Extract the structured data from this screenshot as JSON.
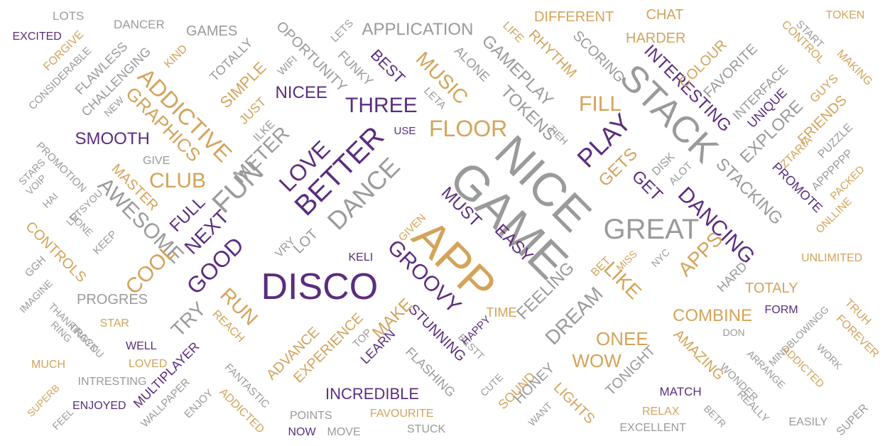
{
  "palette": {
    "gray": "#9a9a9a",
    "gold": "#d4a35a",
    "purple": "#5b2d7e"
  },
  "words": [
    {
      "text": "LOTS",
      "c": "gray"
    },
    {
      "text": "DANCER",
      "c": "gray"
    },
    {
      "text": "EXCITED",
      "c": "purple"
    },
    {
      "text": "FORGIVE",
      "c": "gold"
    },
    {
      "text": "CONSIDERABLE",
      "c": "gray"
    },
    {
      "text": "FLAWLESS",
      "c": "gray"
    },
    {
      "text": "CHALLENGING",
      "c": "gray"
    },
    {
      "text": "NEW",
      "c": "gray"
    },
    {
      "text": "GAMES",
      "c": "gray"
    },
    {
      "text": "KIND",
      "c": "gold"
    },
    {
      "text": "TOTALLY",
      "c": "gray"
    },
    {
      "text": "ADDICTIVE",
      "c": "gold"
    },
    {
      "text": "GRAPHICS",
      "c": "gold"
    },
    {
      "text": "SIMPLE",
      "c": "gold"
    },
    {
      "text": "WIFI",
      "c": "gray"
    },
    {
      "text": "JUST",
      "c": "gold"
    },
    {
      "text": "ILKE",
      "c": "gray"
    },
    {
      "text": "OPORTUNITY",
      "c": "gray"
    },
    {
      "text": "LETS",
      "c": "gray"
    },
    {
      "text": "FUNKY",
      "c": "gray"
    },
    {
      "text": "APPLICATION",
      "c": "gray"
    },
    {
      "text": "BEST",
      "c": "purple"
    },
    {
      "text": "NICEE",
      "c": "purple"
    },
    {
      "text": "THREE",
      "c": "purple"
    },
    {
      "text": "LETA",
      "c": "gray"
    },
    {
      "text": "USE",
      "c": "purple"
    },
    {
      "text": "MUSIC",
      "c": "gold"
    },
    {
      "text": "ALONE",
      "c": "gray"
    },
    {
      "text": "FLOOR",
      "c": "gold"
    },
    {
      "text": "GAMEPLAY",
      "c": "gray"
    },
    {
      "text": "LIFE",
      "c": "gold"
    },
    {
      "text": "RHYTHM",
      "c": "gold"
    },
    {
      "text": "DIFFERENT",
      "c": "gold"
    },
    {
      "text": "TOKENS",
      "c": "gray"
    },
    {
      "text": "SCORING",
      "c": "gray"
    },
    {
      "text": "CHAT",
      "c": "gold"
    },
    {
      "text": "HARDER",
      "c": "gold"
    },
    {
      "text": "TIEH",
      "c": "gray"
    },
    {
      "text": "FILL",
      "c": "gold"
    },
    {
      "text": "STACK",
      "c": "gray"
    },
    {
      "text": "INTERESTING",
      "c": "purple"
    },
    {
      "text": "COLOUR",
      "c": "gold"
    },
    {
      "text": "FAVORITE",
      "c": "gray"
    },
    {
      "text": "START",
      "c": "gray"
    },
    {
      "text": "TOKEN",
      "c": "gold"
    },
    {
      "text": "CONTROL",
      "c": "gold"
    },
    {
      "text": "MAKING",
      "c": "gold"
    },
    {
      "text": "INTERFACE",
      "c": "gray"
    },
    {
      "text": "UNIQUE",
      "c": "purple"
    },
    {
      "text": "GUYS",
      "c": "gold"
    },
    {
      "text": "FRIENDS",
      "c": "gold"
    },
    {
      "text": "EXPLORE",
      "c": "gray"
    },
    {
      "text": "PUZZLE",
      "c": "gray"
    },
    {
      "text": "ZTARIA",
      "c": "gold"
    },
    {
      "text": "APPPPPP",
      "c": "gray"
    },
    {
      "text": "PACKED",
      "c": "gold"
    },
    {
      "text": "PROMOTE",
      "c": "purple"
    },
    {
      "text": "ONLLINE",
      "c": "gold"
    },
    {
      "text": "STACKING",
      "c": "gray"
    },
    {
      "text": "DANCING",
      "c": "purple"
    },
    {
      "text": "PLAY",
      "c": "purple"
    },
    {
      "text": "GETS",
      "c": "gold"
    },
    {
      "text": "DISK",
      "c": "gray"
    },
    {
      "text": "ALOT",
      "c": "gray"
    },
    {
      "text": "GET",
      "c": "purple"
    },
    {
      "text": "NICE",
      "c": "gray"
    },
    {
      "text": "GAME",
      "c": "gray"
    },
    {
      "text": "GREAT",
      "c": "gray"
    },
    {
      "text": "SMOOTH",
      "c": "purple"
    },
    {
      "text": "PROMOTION",
      "c": "gray"
    },
    {
      "text": "STARS",
      "c": "gray"
    },
    {
      "text": "VOIP",
      "c": "gray"
    },
    {
      "text": "GIVE",
      "c": "gray"
    },
    {
      "text": "CLUB",
      "c": "gold"
    },
    {
      "text": "MASTER",
      "c": "gold"
    },
    {
      "text": "AWESOME",
      "c": "gray"
    },
    {
      "text": "HAI",
      "c": "gray"
    },
    {
      "text": "LETSYOU",
      "c": "gray"
    },
    {
      "text": "DONE",
      "c": "gray"
    },
    {
      "text": "CONTROLS",
      "c": "gold"
    },
    {
      "text": "GGH",
      "c": "gray"
    },
    {
      "text": "KEEP",
      "c": "gray"
    },
    {
      "text": "METER",
      "c": "gray"
    },
    {
      "text": "LOVE",
      "c": "purple"
    },
    {
      "text": "FUN",
      "c": "gray"
    },
    {
      "text": "FULL",
      "c": "purple"
    },
    {
      "text": "NEXT",
      "c": "purple"
    },
    {
      "text": "BETTER",
      "c": "purple"
    },
    {
      "text": "DANCE",
      "c": "gray"
    },
    {
      "text": "GOOD",
      "c": "purple"
    },
    {
      "text": "COOL",
      "c": "gold"
    },
    {
      "text": "IMAGINE",
      "c": "gray"
    },
    {
      "text": "PROGRES",
      "c": "gray"
    },
    {
      "text": "VRY",
      "c": "gray"
    },
    {
      "text": "LOT",
      "c": "gray"
    },
    {
      "text": "DISCO",
      "c": "purple"
    },
    {
      "text": "KELI",
      "c": "purple"
    },
    {
      "text": "GROOVY",
      "c": "purple"
    },
    {
      "text": "GIVEN",
      "c": "gold"
    },
    {
      "text": "APP",
      "c": "gold"
    },
    {
      "text": "MUST",
      "c": "purple"
    },
    {
      "text": "EASY",
      "c": "purple"
    },
    {
      "text": "FEELING",
      "c": "gray"
    },
    {
      "text": "DREAM",
      "c": "gray"
    },
    {
      "text": "LIKE",
      "c": "gold"
    },
    {
      "text": "BET",
      "c": "gold"
    },
    {
      "text": "MISS",
      "c": "gold"
    },
    {
      "text": "NYC",
      "c": "gray"
    },
    {
      "text": "APPS",
      "c": "gold"
    },
    {
      "text": "HARD",
      "c": "gray"
    },
    {
      "text": "UNLIMITED",
      "c": "gold"
    },
    {
      "text": "TOTALY",
      "c": "gold"
    },
    {
      "text": "COMBINE",
      "c": "gold"
    },
    {
      "text": "FORM",
      "c": "purple"
    },
    {
      "text": "TRUH",
      "c": "gold"
    },
    {
      "text": "FOREVER",
      "c": "gold"
    },
    {
      "text": "MINDBLOWINGG",
      "c": "gray"
    },
    {
      "text": "DON",
      "c": "gray"
    },
    {
      "text": "ARRANGE",
      "c": "gray"
    },
    {
      "text": "WORK",
      "c": "gray"
    },
    {
      "text": "ADDICTED",
      "c": "gold"
    },
    {
      "text": "WONDER",
      "c": "gray"
    },
    {
      "text": "AMAZING",
      "c": "gold"
    },
    {
      "text": "ONEE",
      "c": "gold"
    },
    {
      "text": "WOW",
      "c": "gold"
    },
    {
      "text": "TIME",
      "c": "gold"
    },
    {
      "text": "THANKINGYOU",
      "c": "gray"
    },
    {
      "text": "RING",
      "c": "gray"
    },
    {
      "text": "TRY",
      "c": "gray"
    },
    {
      "text": "RUN",
      "c": "gold"
    },
    {
      "text": "REACH",
      "c": "gold"
    },
    {
      "text": "STAR",
      "c": "gold"
    },
    {
      "text": "TRACK",
      "c": "gray"
    },
    {
      "text": "WELL",
      "c": "purple"
    },
    {
      "text": "MUCH",
      "c": "gold"
    },
    {
      "text": "LOVED",
      "c": "gold"
    },
    {
      "text": "INTRESTING",
      "c": "gray"
    },
    {
      "text": "SUPERB",
      "c": "gold"
    },
    {
      "text": "ENJOYED",
      "c": "purple"
    },
    {
      "text": "FEEL",
      "c": "gray"
    },
    {
      "text": "MULTIPLAYER",
      "c": "purple"
    },
    {
      "text": "WALLPAPER",
      "c": "gray"
    },
    {
      "text": "ENJOY",
      "c": "gray"
    },
    {
      "text": "FANTASTIC",
      "c": "gray"
    },
    {
      "text": "ADDICTED",
      "c": "gold"
    },
    {
      "text": "ADVANCE",
      "c": "gold"
    },
    {
      "text": "EXPERIENCE",
      "c": "gold"
    },
    {
      "text": "TOP",
      "c": "gray"
    },
    {
      "text": "MAKE",
      "c": "gold"
    },
    {
      "text": "LEARN",
      "c": "purple"
    },
    {
      "text": "STUNNING",
      "c": "purple"
    },
    {
      "text": "BESTT",
      "c": "gray"
    },
    {
      "text": "HAPPY",
      "c": "purple"
    },
    {
      "text": "FLASHING",
      "c": "gray"
    },
    {
      "text": "INCREDIBLE",
      "c": "purple"
    },
    {
      "text": "POINTS",
      "c": "gray"
    },
    {
      "text": "FAVOURITE",
      "c": "gold"
    },
    {
      "text": "NOW",
      "c": "purple"
    },
    {
      "text": "MOVE",
      "c": "gray"
    },
    {
      "text": "STUCK",
      "c": "gray"
    },
    {
      "text": "CUTE",
      "c": "gray"
    },
    {
      "text": "SOUND",
      "c": "gold"
    },
    {
      "text": "HONEY",
      "c": "gray"
    },
    {
      "text": "WANT",
      "c": "gray"
    },
    {
      "text": "LIGHTS",
      "c": "gold"
    },
    {
      "text": "TONIGHT",
      "c": "gray"
    },
    {
      "text": "MATCH",
      "c": "purple"
    },
    {
      "text": "RELAX",
      "c": "gold"
    },
    {
      "text": "EXCELLENT",
      "c": "gray"
    },
    {
      "text": "BETR",
      "c": "gray"
    },
    {
      "text": "REALLY",
      "c": "gray"
    },
    {
      "text": "EASILY",
      "c": "gray"
    },
    {
      "text": "SUPER",
      "c": "gray"
    }
  ]
}
